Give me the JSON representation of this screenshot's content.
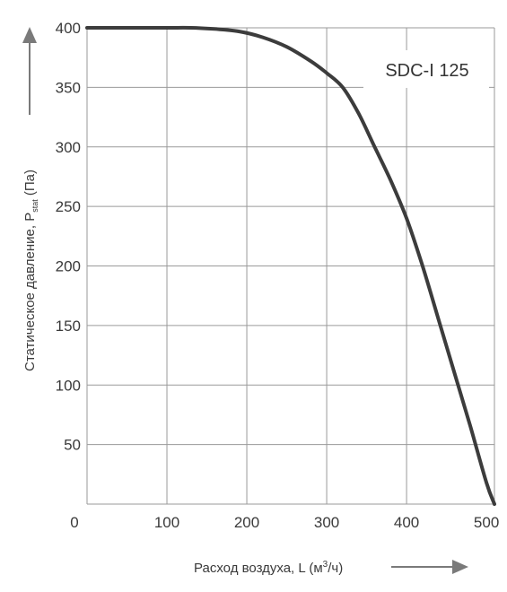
{
  "chart_data": {
    "type": "line",
    "title": "",
    "legend_label": "SDC-I 125",
    "legend_placement": "top-right",
    "xlabel_main": "Расход воздуха, L (м",
    "xlabel_sup": "3",
    "xlabel_tail": "/ч)",
    "ylabel_main": "Статическое давление, P",
    "ylabel_sub": "stat",
    "ylabel_tail": " (Па)",
    "xlim": [
      0,
      510
    ],
    "ylim": [
      0,
      400
    ],
    "xticks": [
      0,
      100,
      200,
      300,
      400,
      500
    ],
    "yticks": [
      50,
      100,
      150,
      200,
      250,
      300,
      350,
      400
    ],
    "x_grid_lines": [
      0,
      100,
      200,
      300,
      400,
      510
    ],
    "grid": true,
    "series": [
      {
        "points": [
          [
            0,
            400
          ],
          [
            50,
            400
          ],
          [
            100,
            400
          ],
          [
            130,
            400
          ],
          [
            160,
            399
          ],
          [
            190,
            397
          ],
          [
            220,
            392
          ],
          [
            250,
            384
          ],
          [
            280,
            372
          ],
          [
            300,
            362
          ],
          [
            320,
            350
          ],
          [
            340,
            328
          ],
          [
            360,
            300
          ],
          [
            380,
            272
          ],
          [
            400,
            240
          ],
          [
            420,
            200
          ],
          [
            440,
            155
          ],
          [
            460,
            110
          ],
          [
            480,
            65
          ],
          [
            500,
            18
          ],
          [
            510,
            0
          ]
        ],
        "color": "#3c3c3c"
      }
    ],
    "colors": {
      "grid": "#9a9a9a",
      "curve": "#3c3c3c",
      "axis_arrow": "#7a7a7a",
      "text": "#3a3a3a"
    }
  }
}
